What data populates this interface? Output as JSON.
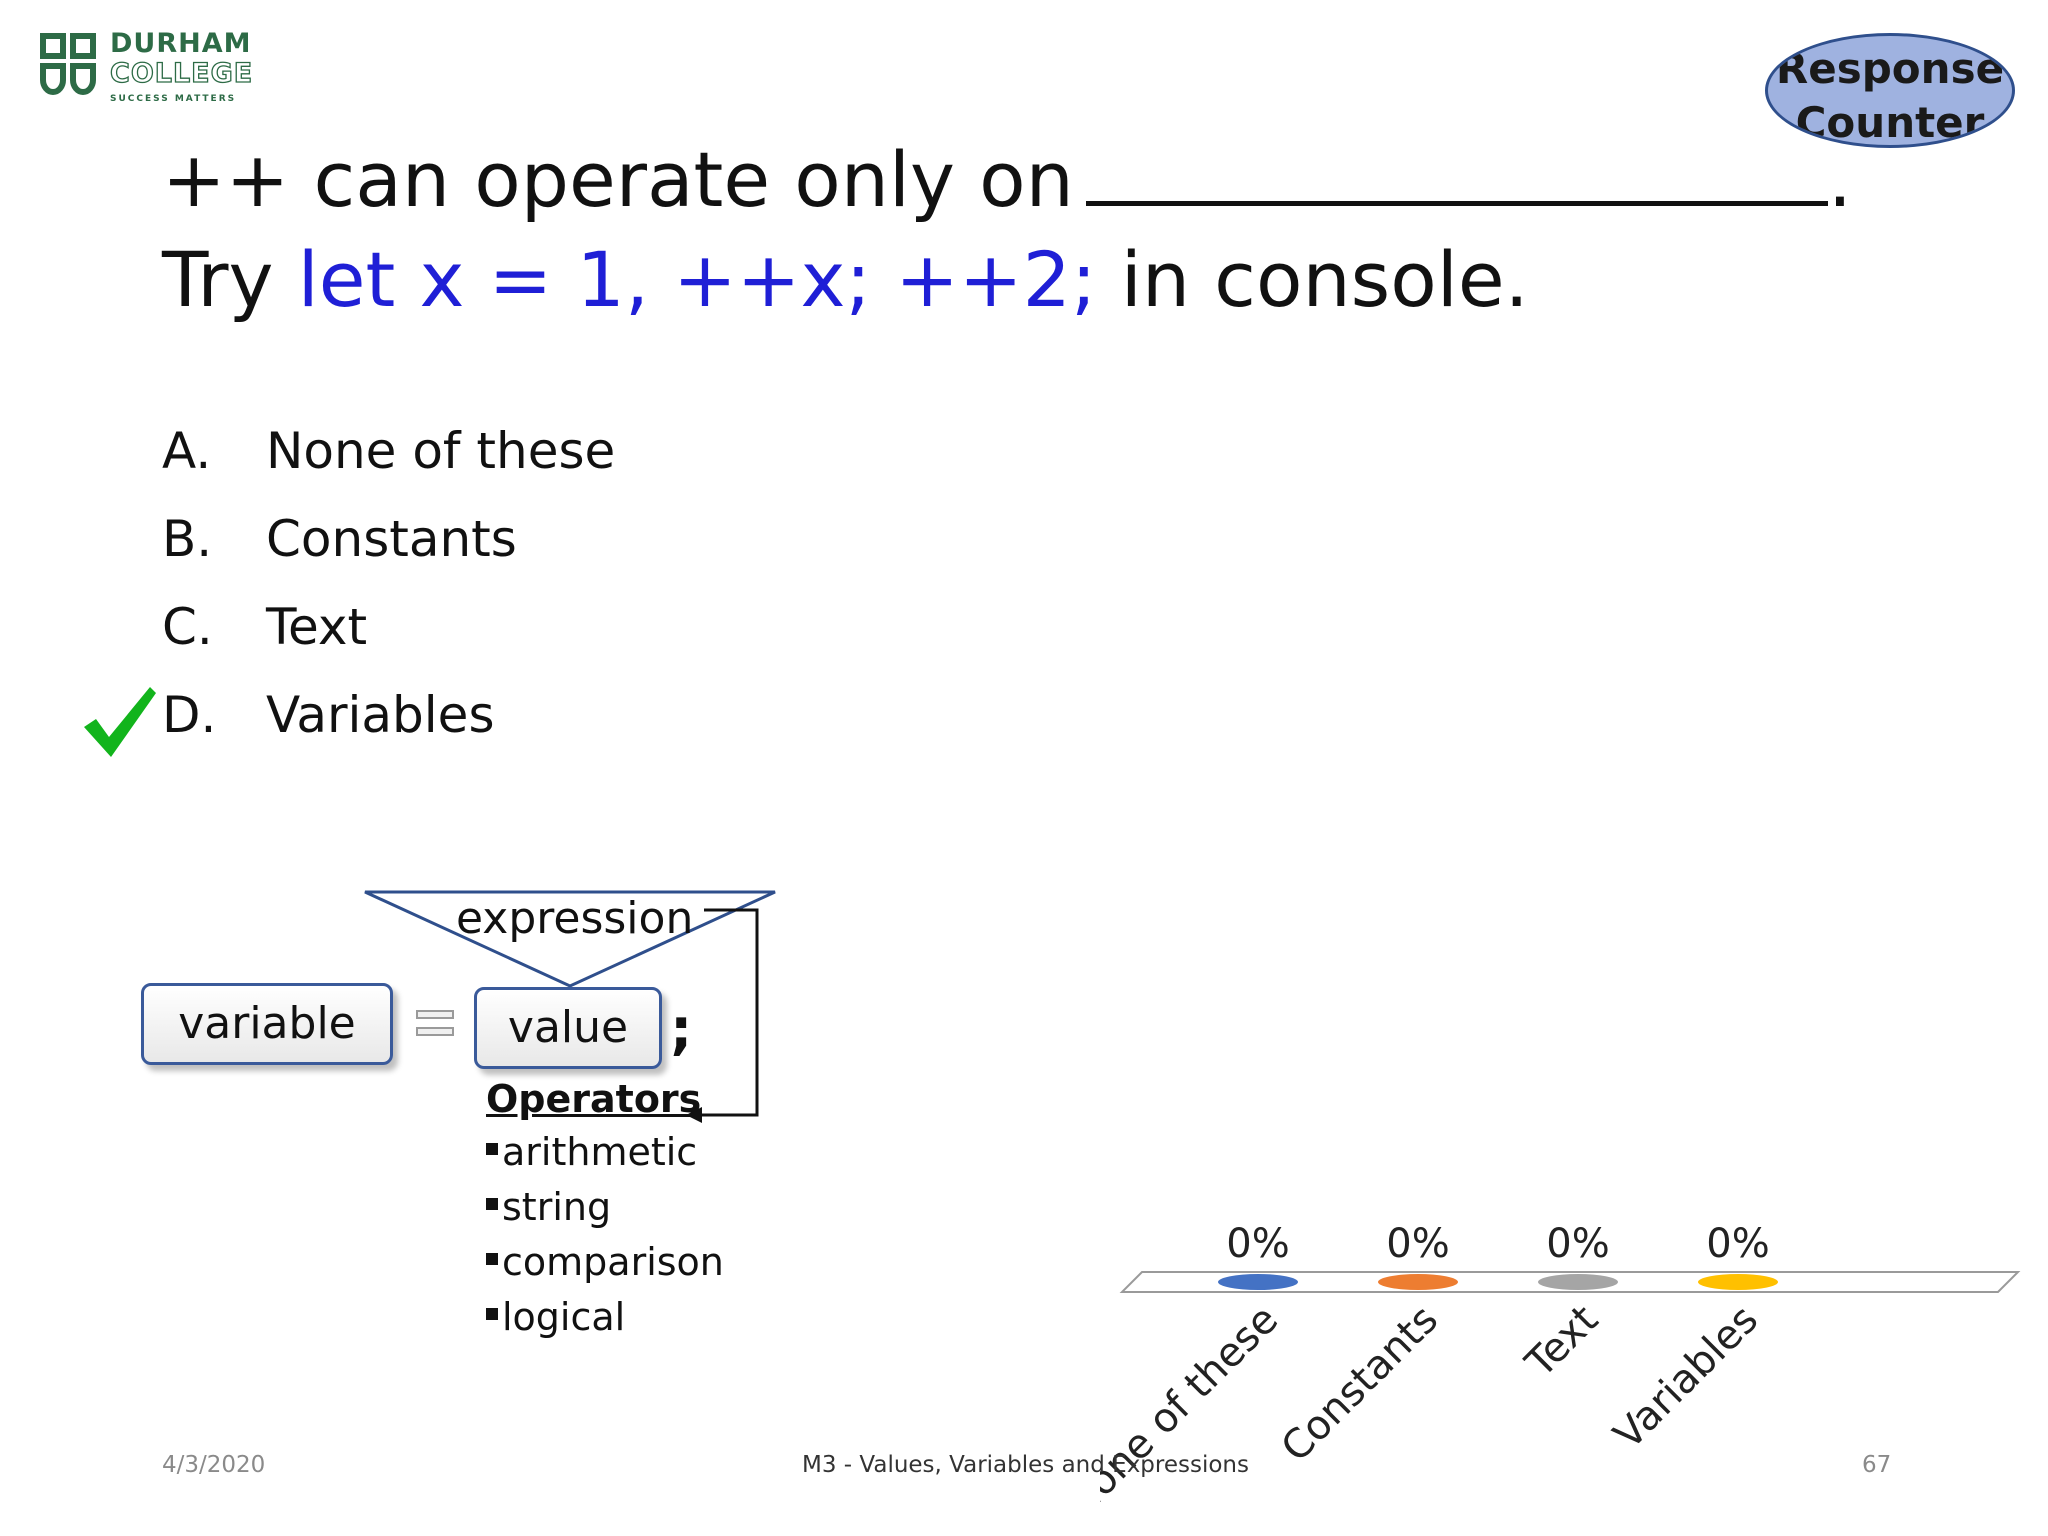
{
  "logo": {
    "line1": "DURHAM",
    "line2": "COLLEGE",
    "line3": "SUCCESS MATTERS",
    "icon": "durham-college-logo-icon",
    "color": "#2d6b46"
  },
  "response_counter": {
    "line1": "Response",
    "line2": "Counter",
    "background": "#9fb2e0",
    "border": "#2f4f8c"
  },
  "question": {
    "line1": "++ can operate only on",
    "line1_end": ".",
    "line2_prefix": "Try",
    "line2_code": "let x = 1, ++x;  ++2;",
    "line2_suffix": "in console.",
    "code_color": "#1f1fd6"
  },
  "options": [
    {
      "letter": "A.",
      "text": "None of these"
    },
    {
      "letter": "B.",
      "text": "Constants"
    },
    {
      "letter": "C.",
      "text": "Text"
    },
    {
      "letter": "D.",
      "text": "Variables"
    }
  ],
  "correct_option": "D",
  "correct_icon": "checkmark-icon",
  "correct_color": "#12b41c",
  "diagram": {
    "expression_label": "expression",
    "variable_label": "variable",
    "value_label": "value",
    "semicolon": ";",
    "operators_title": "Operators",
    "operators": [
      "arithmetic",
      "string",
      "comparison",
      "logical"
    ]
  },
  "chart_data": {
    "type": "bar",
    "categories": [
      "None of these",
      "Constants",
      "Text",
      "Variables"
    ],
    "values": [
      0,
      0,
      0,
      0
    ],
    "value_labels": [
      "0%",
      "0%",
      "0%",
      "0%"
    ],
    "colors": [
      "#4472c4",
      "#ed7d31",
      "#a5a5a5",
      "#ffc000"
    ],
    "unit": "%",
    "ylim": [
      0,
      100
    ]
  },
  "footer": {
    "date": "4/3/2020",
    "title": "M3 - Values, Variables and Expressions",
    "page": "67"
  }
}
